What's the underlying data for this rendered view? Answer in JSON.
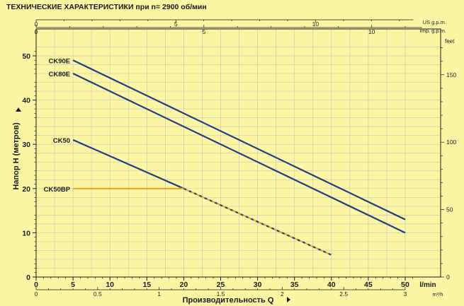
{
  "title": "ТЕХНИЧЕСКИЕ ХАРАКТЕРИСТИКИ при n= 2900 об/мин",
  "chart_data": {
    "type": "line",
    "title": "ТЕХНИЧЕСКИЕ ХАРАКТЕРИСТИКИ при n= 2900 об/мин",
    "xlabel": "Производительность  Q",
    "ylabel": "Напор Н  (метров)",
    "xlim": [
      0,
      52
    ],
    "ylim": [
      0,
      52
    ],
    "grid": true,
    "x_ticks": [
      0,
      5,
      10,
      15,
      20,
      25,
      30,
      35,
      40,
      45,
      50
    ],
    "y_ticks": [
      0,
      10,
      20,
      30,
      40,
      50
    ],
    "x_unit": "l/min",
    "y_right_unit": "feet",
    "secondary_x_bottom": {
      "unit": "m³/h",
      "ticks": [
        {
          "value": 0,
          "label": "0"
        },
        {
          "value": 0.5,
          "label": "0.5"
        },
        {
          "value": 1,
          "label": "1"
        },
        {
          "value": 1.5,
          "label": "1.5"
        },
        {
          "value": 2,
          "label": "2"
        },
        {
          "value": 2.5,
          "label": "2.5"
        },
        {
          "value": 3,
          "label": "3"
        }
      ]
    },
    "secondary_x_top": [
      {
        "unit": "US g.p.m.",
        "ticks": [
          {
            "value": 0,
            "label": "0"
          },
          {
            "value": 5,
            "label": "5"
          },
          {
            "value": 10,
            "label": "10"
          }
        ],
        "minor_step": 1,
        "max": 13.5
      },
      {
        "unit": "Imp. g.p.m.",
        "ticks": [
          {
            "value": 0,
            "label": "0"
          },
          {
            "value": 5,
            "label": "5"
          },
          {
            "value": 10,
            "label": "10"
          }
        ],
        "minor_step": 1,
        "max": 11.5
      }
    ],
    "secondary_y_right": {
      "unit": "feet",
      "ticks": [
        {
          "value": 0,
          "label": "0"
        },
        {
          "value": 50,
          "label": "50"
        },
        {
          "value": 100,
          "label": "100"
        },
        {
          "value": 150,
          "label": "150"
        }
      ],
      "minor_step": 10,
      "max": 170
    },
    "series": [
      {
        "name": "CK90E",
        "color": "#233c80",
        "style": "solid",
        "x": [
          5,
          50
        ],
        "y": [
          49,
          13
        ]
      },
      {
        "name": "CK80E",
        "color": "#233c80",
        "style": "solid",
        "x": [
          5,
          50
        ],
        "y": [
          46,
          10
        ]
      },
      {
        "name": "CK50",
        "color": "#233c80",
        "style": "solid",
        "x": [
          5,
          20
        ],
        "y": [
          31,
          20
        ]
      },
      {
        "name": "CK50",
        "color": "#233c80",
        "style": "dashed",
        "x": [
          20,
          40
        ],
        "y": [
          20,
          5
        ]
      },
      {
        "name": "CK50BP",
        "color": "#e8a62c",
        "style": "solid",
        "x": [
          5,
          20
        ],
        "y": [
          20,
          20
        ]
      },
      {
        "name": "CK50BP",
        "color": "#e8a62c",
        "style": "dashed",
        "x": [
          20,
          40
        ],
        "y": [
          20,
          5
        ]
      }
    ],
    "curve_labels": [
      {
        "text": "CK90E",
        "x": 5,
        "y": 49
      },
      {
        "text": "CK80E",
        "x": 5,
        "y": 46
      },
      {
        "text": "CK50",
        "x": 5,
        "y": 31
      },
      {
        "text": "CK50BP",
        "x": 5,
        "y": 20
      }
    ]
  }
}
